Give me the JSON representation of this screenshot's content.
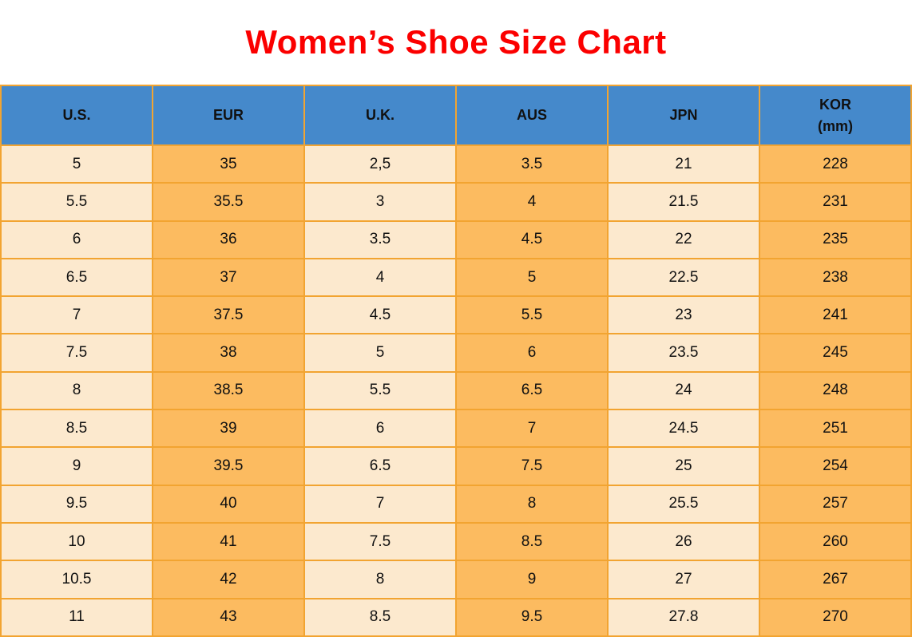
{
  "title": "Women’s Shoe Size Chart",
  "colors": {
    "title-red": "#FB0000",
    "header-blue": "#4589CB",
    "cell-cream": "#FCE9CE",
    "cell-orange": "#FCBB60",
    "border-orange": "#F2A431"
  },
  "chart_data": {
    "type": "table",
    "title": "Women’s Shoe Size Chart",
    "columns": [
      {
        "title": "U.S.",
        "subtitle": ""
      },
      {
        "title": "EUR",
        "subtitle": ""
      },
      {
        "title": "U.K.",
        "subtitle": ""
      },
      {
        "title": "AUS",
        "subtitle": ""
      },
      {
        "title": "JPN",
        "subtitle": ""
      },
      {
        "title": "KOR",
        "subtitle": "(mm)"
      }
    ],
    "rows": [
      [
        "5",
        "35",
        "2,5",
        "3.5",
        "21",
        "228"
      ],
      [
        "5.5",
        "35.5",
        "3",
        "4",
        "21.5",
        "231"
      ],
      [
        "6",
        "36",
        "3.5",
        "4.5",
        "22",
        "235"
      ],
      [
        "6.5",
        "37",
        "4",
        "5",
        "22.5",
        "238"
      ],
      [
        "7",
        "37.5",
        "4.5",
        "5.5",
        "23",
        "241"
      ],
      [
        "7.5",
        "38",
        "5",
        "6",
        "23.5",
        "245"
      ],
      [
        "8",
        "38.5",
        "5.5",
        "6.5",
        "24",
        "248"
      ],
      [
        "8.5",
        "39",
        "6",
        "7",
        "24.5",
        "251"
      ],
      [
        "9",
        "39.5",
        "6.5",
        "7.5",
        "25",
        "254"
      ],
      [
        "9.5",
        "40",
        "7",
        "8",
        "25.5",
        "257"
      ],
      [
        "10",
        "41",
        "7.5",
        "8.5",
        "26",
        "260"
      ],
      [
        "10.5",
        "42",
        "8",
        "9",
        "27",
        "267"
      ],
      [
        "11",
        "43",
        "8.5",
        "9.5",
        "27.8",
        "270"
      ]
    ]
  }
}
